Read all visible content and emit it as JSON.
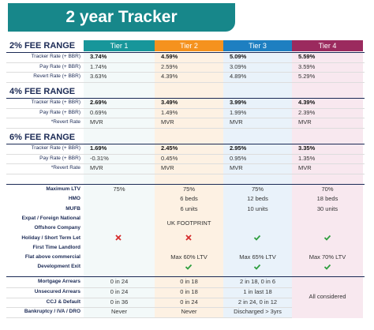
{
  "header": {
    "title": "2 year Tracker"
  },
  "tiers": [
    "Tier 1",
    "Tier 2",
    "Tier 3",
    "Tier 4"
  ],
  "fee_sections": [
    {
      "title": "2% FEE RANGE",
      "rows": [
        {
          "label": "Tracker Rate (+ BBR)",
          "cells": [
            "3.74%",
            "4.59%",
            "5.09%",
            "5.59%"
          ]
        },
        {
          "label": "Pay Rate (+ BBR)",
          "cells": [
            "1.74%",
            "2.59%",
            "3.09%",
            "3.59%"
          ]
        },
        {
          "label": "Revert Rate (+ BBR)",
          "cells": [
            "3.63%",
            "4.39%",
            "4.89%",
            "5.29%"
          ]
        }
      ]
    },
    {
      "title": "4% FEE RANGE",
      "rows": [
        {
          "label": "Tracker Rate (+ BBR)",
          "cells": [
            "2.69%",
            "3.49%",
            "3.99%",
            "4.39%"
          ]
        },
        {
          "label": "Pay Rate (+ BBR)",
          "cells": [
            "0.69%",
            "1.49%",
            "1.99%",
            "2.39%"
          ]
        },
        {
          "label": "*Revert Rate",
          "cells": [
            "MVR",
            "MVR",
            "MVR",
            "MVR"
          ]
        }
      ]
    },
    {
      "title": "6% FEE RANGE",
      "rows": [
        {
          "label": "Tracker Rate (+ BBR)",
          "cells": [
            "1.69%",
            "2.45%",
            "2.95%",
            "3.35%"
          ]
        },
        {
          "label": "Pay Rate (+ BBR)",
          "cells": [
            "-0.31%",
            "0.45%",
            "0.95%",
            "1.35%"
          ]
        },
        {
          "label": "*Revert Rate",
          "cells": [
            "MVR",
            "MVR",
            "MVR",
            "MVR"
          ]
        }
      ]
    }
  ],
  "criteria": {
    "rows": [
      {
        "label": "Maximum LTV",
        "cells": [
          "75%",
          "75%",
          "75%",
          "70%"
        ]
      },
      {
        "label": "HMO",
        "cells": [
          null,
          "6 beds",
          "12 beds",
          "18 beds"
        ]
      },
      {
        "label": "MUFB",
        "cells": [
          null,
          "6 units",
          "10 units",
          "30 units"
        ]
      },
      {
        "label": "Expat / Foreign National",
        "cells": [
          null,
          null,
          null,
          null
        ]
      },
      {
        "label": "Offshore Company",
        "cells": [
          null,
          null,
          null,
          null
        ]
      },
      {
        "label": "Holiday / Short Term Let",
        "cells": [
          null,
          null,
          null,
          null
        ]
      },
      {
        "label": "First Time Landlord",
        "cells": [
          null,
          null,
          null,
          null
        ]
      },
      {
        "label": "Flat above commercial",
        "cells": [
          null,
          "Max 60% LTV",
          "Max 65% LTV",
          "Max 70% LTV"
        ]
      },
      {
        "label": "Development Exit",
        "cells": [
          null,
          null,
          null,
          null
        ]
      }
    ],
    "uk_footprint": "UK FOOTPRINT"
  },
  "arrears": {
    "rows": [
      {
        "label": "Mortgage Arrears",
        "cells": [
          "0 in 24",
          "0 in 18",
          "2 in 18, 0 in 6"
        ]
      },
      {
        "label": "Unsecured Arrears",
        "cells": [
          "0 in 24",
          "0 in 18",
          "1 in last 18"
        ]
      },
      {
        "label": "CCJ & Default",
        "cells": [
          "0 in 36",
          "0 in 24",
          "2 in 24, 0 in 12"
        ]
      },
      {
        "label": "Bankruptcy / IVA / DRO",
        "cells": [
          "Never",
          "Never",
          "Discharged > 3yrs"
        ]
      }
    ],
    "tier4": "All considered"
  }
}
